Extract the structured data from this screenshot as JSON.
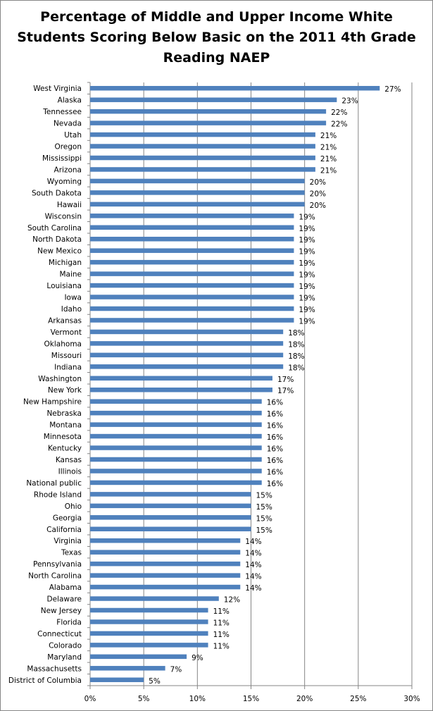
{
  "chart_data": {
    "type": "bar",
    "orientation": "horizontal",
    "title": "Percentage of Middle and Upper Income White Students Scoring Below Basic on the 2011 4th Grade Reading NAEP",
    "xlabel": "",
    "ylabel": "",
    "xlim": [
      0,
      30
    ],
    "x_ticks": [
      "0%",
      "5%",
      "10%",
      "15%",
      "20%",
      "25%",
      "30%"
    ],
    "grid": "vertical",
    "legend": "none",
    "bar_color": "#4f81bd",
    "categories": [
      "West Virginia",
      "Alaska",
      "Tennessee",
      "Nevada",
      "Utah",
      "Oregon",
      "Mississippi",
      "Arizona",
      "Wyoming",
      "South Dakota",
      "Hawaii",
      "Wisconsin",
      "South Carolina",
      "North Dakota",
      "New Mexico",
      "Michigan",
      "Maine",
      "Louisiana",
      "Iowa",
      "Idaho",
      "Arkansas",
      "Vermont",
      "Oklahoma",
      "Missouri",
      "Indiana",
      "Washington",
      "New York",
      "New Hampshire",
      "Nebraska",
      "Montana",
      "Minnesota",
      "Kentucky",
      "Kansas",
      "Illinois",
      "National public",
      "Rhode Island",
      "Ohio",
      "Georgia",
      "California",
      "Virginia",
      "Texas",
      "Pennsylvania",
      "North Carolina",
      "Alabama",
      "Delaware",
      "New Jersey",
      "Florida",
      "Connecticut",
      "Colorado",
      "Maryland",
      "Massachusetts",
      "District of Columbia"
    ],
    "values": [
      27,
      23,
      22,
      22,
      21,
      21,
      21,
      21,
      20,
      20,
      20,
      19,
      19,
      19,
      19,
      19,
      19,
      19,
      19,
      19,
      19,
      18,
      18,
      18,
      18,
      17,
      17,
      16,
      16,
      16,
      16,
      16,
      16,
      16,
      16,
      15,
      15,
      15,
      15,
      14,
      14,
      14,
      14,
      14,
      12,
      11,
      11,
      11,
      11,
      9,
      7,
      5
    ],
    "data_labels": [
      "27%",
      "23%",
      "22%",
      "22%",
      "21%",
      "21%",
      "21%",
      "21%",
      "20%",
      "20%",
      "20%",
      "19%",
      "19%",
      "19%",
      "19%",
      "19%",
      "19%",
      "19%",
      "19%",
      "19%",
      "19%",
      "18%",
      "18%",
      "18%",
      "18%",
      "17%",
      "17%",
      "16%",
      "16%",
      "16%",
      "16%",
      "16%",
      "16%",
      "16%",
      "16%",
      "15%",
      "15%",
      "15%",
      "15%",
      "14%",
      "14%",
      "14%",
      "14%",
      "14%",
      "12%",
      "11%",
      "11%",
      "11%",
      "11%",
      "9%",
      "7%",
      "5%"
    ]
  }
}
